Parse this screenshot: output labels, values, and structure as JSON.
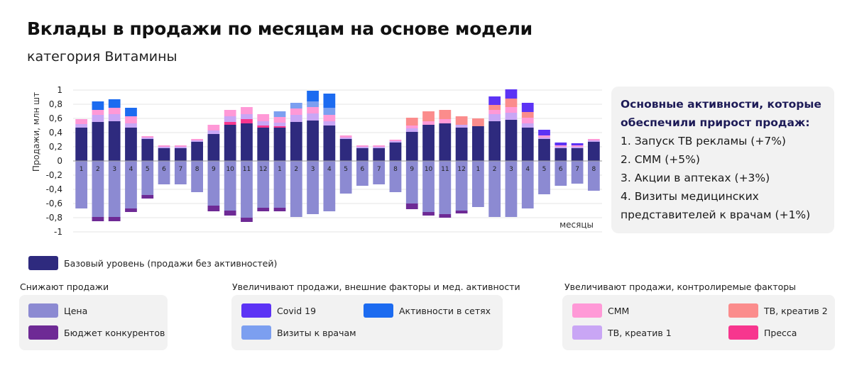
{
  "header": {
    "title": "Вклады в продажи по месяцам на основе модели",
    "subtitle": "категория Витамины"
  },
  "panel": {
    "heading_line1": "Основные активности, которые",
    "heading_line2": "обеспечили прирост продаж:",
    "items": [
      "1. Запуск ТВ рекламы (+7%)",
      "2. СММ (+5%)",
      "3. Акции в аптеках (+3%)",
      "4. Визиты медицинских",
      "представителей к врачам (+1%)"
    ]
  },
  "legend": {
    "base_label": "Базовый уровень (продажи без активностей)",
    "groups": [
      {
        "title": "Снижают продажи",
        "items": [
          {
            "label": "Цена",
            "color": "#8c8ad2"
          },
          {
            "label": "Бюджет конкурентов",
            "color": "#6e2a95"
          }
        ]
      },
      {
        "title": "Увеличивают продажи, внешние факторы и мед. активности",
        "items": [
          {
            "label": "Covid 19",
            "color": "#5c33f5"
          },
          {
            "label": "Активности в сетях",
            "color": "#1c6bf0"
          },
          {
            "label": "Визиты к врачам",
            "color": "#7c9ff0"
          }
        ]
      },
      {
        "title": "Увеличивают продажи, контролиремые факторы",
        "items": [
          {
            "label": "СММ",
            "color": "#ff99d7"
          },
          {
            "label": "ТВ, креатив 2",
            "color": "#fb8c8c"
          },
          {
            "label": "ТВ, креатив 1",
            "color": "#c9a6f5"
          },
          {
            "label": "Пресса",
            "color": "#f7368e"
          }
        ]
      }
    ]
  },
  "chart_data": {
    "type": "bar",
    "stacked": true,
    "ylabel": "Продажи, млн шт",
    "xlabel": "месяцы",
    "ylim": [
      -1,
      1
    ],
    "yticks": [
      "1",
      "0,8",
      "0,6",
      "0,4",
      "0,2",
      "0",
      "-0,2",
      "-0,4",
      "-0,6",
      "-0,8",
      "-1"
    ],
    "categories": [
      "1",
      "2",
      "3",
      "4",
      "5",
      "6",
      "7",
      "8",
      "9",
      "10",
      "11",
      "12",
      "1",
      "2",
      "3",
      "4",
      "5",
      "6",
      "7",
      "8",
      "9",
      "10",
      "11",
      "12",
      "1",
      "2",
      "3",
      "4",
      "5",
      "6",
      "7",
      "8"
    ],
    "series": [
      {
        "name": "Базовый уровень (продажи без активностей)",
        "color": "#2e2a7e",
        "values": [
          0.47,
          0.55,
          0.56,
          0.47,
          0.31,
          0.18,
          0.18,
          0.27,
          0.38,
          0.51,
          0.53,
          0.47,
          0.47,
          0.55,
          0.57,
          0.5,
          0.31,
          0.18,
          0.18,
          0.26,
          0.41,
          0.51,
          0.53,
          0.47,
          0.49,
          0.56,
          0.58,
          0.47,
          0.31,
          0.18,
          0.18,
          0.27
        ]
      },
      {
        "name": "Цена",
        "color": "#8c8ad2",
        "values": [
          -0.67,
          -0.79,
          -0.79,
          -0.67,
          -0.48,
          -0.33,
          -0.33,
          -0.44,
          -0.63,
          -0.7,
          -0.8,
          -0.66,
          -0.66,
          -0.79,
          -0.75,
          -0.71,
          -0.46,
          -0.35,
          -0.33,
          -0.44,
          -0.6,
          -0.72,
          -0.75,
          -0.7,
          -0.65,
          -0.79,
          -0.79,
          -0.67,
          -0.47,
          -0.35,
          -0.32,
          -0.42
        ]
      },
      {
        "name": "Бюджет конкурентов",
        "color": "#6e2a95",
        "values": [
          0,
          -0.06,
          -0.06,
          -0.05,
          -0.05,
          0,
          0,
          0,
          -0.08,
          -0.07,
          -0.06,
          -0.05,
          -0.05,
          0,
          0,
          0,
          0,
          0,
          0,
          0,
          -0.08,
          -0.05,
          -0.05,
          -0.04,
          0,
          0,
          0,
          0,
          0,
          0,
          0,
          0
        ]
      },
      {
        "name": "Пресса",
        "color": "#f7368e",
        "values": [
          0,
          0,
          0,
          0,
          0,
          0,
          0,
          0,
          0,
          0.04,
          0.06,
          0.03,
          0.02,
          0,
          0,
          0,
          0,
          0,
          0,
          0,
          0,
          0,
          0,
          0,
          0,
          0,
          0,
          0,
          0,
          0,
          0,
          0
        ]
      },
      {
        "name": "ТВ, креатив 1",
        "color": "#c9a6f5",
        "values": [
          0.05,
          0.1,
          0.1,
          0.06,
          0.02,
          0.02,
          0.02,
          0.02,
          0.05,
          0.08,
          0.07,
          0.06,
          0.05,
          0.1,
          0.1,
          0.06,
          0.02,
          0.02,
          0.02,
          0.02,
          0.05,
          0,
          0,
          0.04,
          0,
          0.1,
          0.1,
          0.06,
          0.02,
          0.02,
          0.02,
          0.02
        ]
      },
      {
        "name": "СММ",
        "color": "#ff99d7",
        "values": [
          0.07,
          0.07,
          0.09,
          0.1,
          0.02,
          0.02,
          0.02,
          0.02,
          0.08,
          0.09,
          0.1,
          0.1,
          0.08,
          0.09,
          0.09,
          0.09,
          0.03,
          0.02,
          0.02,
          0.02,
          0.04,
          0.05,
          0.06,
          0,
          0,
          0.06,
          0.08,
          0.08,
          0.03,
          0.02,
          0.02,
          0.02
        ]
      },
      {
        "name": "ТВ, креатив 2",
        "color": "#fb8c8c",
        "values": [
          0,
          0,
          0,
          0,
          0,
          0,
          0,
          0,
          0,
          0,
          0,
          0,
          0,
          0,
          0,
          0,
          0,
          0,
          0,
          0,
          0.11,
          0.14,
          0.13,
          0.12,
          0.11,
          0.07,
          0.12,
          0.08,
          0,
          0,
          0,
          0
        ]
      },
      {
        "name": "Визиты к врачам",
        "color": "#7c9ff0",
        "values": [
          0,
          0,
          0,
          0,
          0,
          0,
          0,
          0,
          0,
          0,
          0,
          0,
          0.08,
          0.08,
          0.08,
          0.1,
          0,
          0,
          0,
          0,
          0,
          0,
          0,
          0,
          0,
          0,
          0,
          0,
          0,
          0,
          0,
          0
        ]
      },
      {
        "name": "Активности в сетях",
        "color": "#1c6bf0",
        "values": [
          0,
          0.12,
          0.12,
          0.12,
          0,
          0,
          0,
          0,
          0,
          0,
          0,
          0,
          0,
          0,
          0.15,
          0.2,
          0,
          0,
          0,
          0,
          0,
          0,
          0,
          0,
          0,
          0,
          0,
          0,
          0,
          0,
          0,
          0
        ]
      },
      {
        "name": "Covid 19",
        "color": "#5c33f5",
        "values": [
          0,
          0,
          0,
          0,
          0,
          0,
          0,
          0,
          0,
          0,
          0,
          0,
          0,
          0,
          0,
          0,
          0,
          0,
          0,
          0,
          0,
          0,
          0,
          0,
          0,
          0.12,
          0.13,
          0.13,
          0.08,
          0.04,
          0.03,
          0
        ]
      }
    ]
  }
}
